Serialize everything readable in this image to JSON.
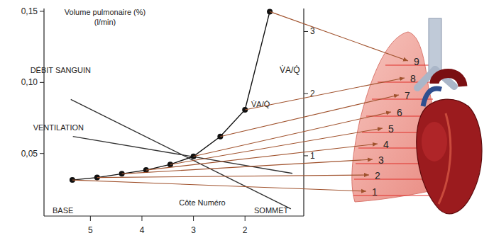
{
  "chart_data": {
    "type": "line",
    "x_label": "Côte Numéro",
    "y_label": "Volume pulmonaire (%)",
    "y_label_unit": "(l/min)",
    "y2_label": "V̇A/Q̇",
    "annotations": [
      "BASE",
      "SOMMET"
    ],
    "xlim": [
      5.9,
      0.86
    ],
    "xticks": [
      5,
      4,
      3,
      2
    ],
    "ylim": [
      0.006,
      0.152
    ],
    "yticks": [
      {
        "value": 0.05,
        "label": "0,05"
      },
      {
        "value": 0.1,
        "label": "0,10"
      },
      {
        "value": 0.15,
        "label": "0,15"
      }
    ],
    "y2lim": [
      0.03,
      3.37
    ],
    "y2ticks": [
      1,
      2,
      3
    ],
    "series": [
      {
        "name": "DÉBIT SANGUIN",
        "color": "#333333",
        "x": [
          5.38,
          1.11
        ],
        "values": [
          0.088,
          0.011
        ]
      },
      {
        "name": "VENTILATION",
        "color": "#333333",
        "x": [
          5.34,
          1.08
        ],
        "values": [
          0.062,
          0.036
        ]
      },
      {
        "name": "V̇A/Q̇",
        "axis": "y2",
        "marker": "circle",
        "color": "#111111",
        "x": [
          5.35,
          4.87,
          4.39,
          3.92,
          3.45,
          3.0,
          2.48,
          2.0,
          1.52
        ],
        "values": [
          0.61,
          0.65,
          0.71,
          0.77,
          0.86,
          0.99,
          1.31,
          1.74,
          3.32
        ]
      }
    ],
    "lung_zones": [
      1,
      2,
      3,
      4,
      5,
      6,
      7,
      8,
      9
    ]
  }
}
